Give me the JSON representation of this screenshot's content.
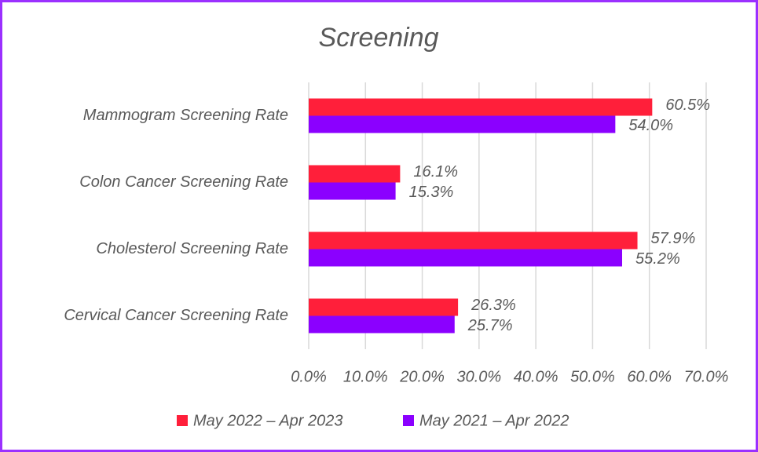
{
  "chart_data": {
    "type": "bar",
    "orientation": "horizontal",
    "title": "Screening",
    "categories": [
      "Mammogram Screening Rate",
      "Colon Cancer Screening Rate",
      "Cholesterol Screening Rate",
      "Cervical Cancer Screening Rate"
    ],
    "series": [
      {
        "name": "May 2022 – Apr 2023",
        "color": "#ff1f3a",
        "values": [
          60.5,
          16.1,
          57.9,
          26.3
        ],
        "value_labels": [
          "60.5%",
          "16.1%",
          "57.9%",
          "26.3%"
        ]
      },
      {
        "name": "May 2021 – Apr 2022",
        "color": "#8b00ff",
        "values": [
          54.0,
          15.3,
          55.2,
          25.7
        ],
        "value_labels": [
          "54.0%",
          "15.3%",
          "55.2%",
          "25.7%"
        ]
      }
    ],
    "xlim": [
      0,
      70
    ],
    "xticks": [
      {
        "value": 0,
        "label": "0.0%"
      },
      {
        "value": 10,
        "label": "10.0%"
      },
      {
        "value": 20,
        "label": "20.0%"
      },
      {
        "value": 30,
        "label": "30.0%"
      },
      {
        "value": 40,
        "label": "40.0%"
      },
      {
        "value": 50,
        "label": "50.0%"
      },
      {
        "value": 60,
        "label": "60.0%"
      },
      {
        "value": 70,
        "label": "70.0%"
      }
    ],
    "grid": true,
    "legend": "bottom"
  }
}
